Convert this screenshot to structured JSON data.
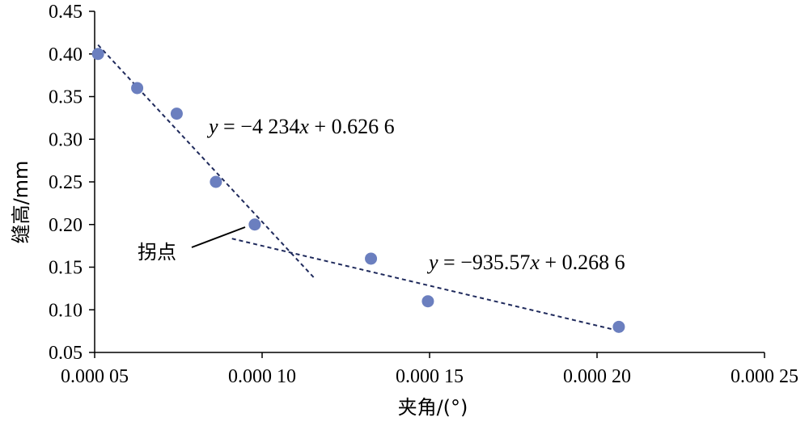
{
  "chart_data": {
    "type": "scatter",
    "xlabel": "夹角/(°)",
    "ylabel": "缝高/mm",
    "xlim": [
      5e-05,
      0.00025
    ],
    "ylim": [
      0.05,
      0.45
    ],
    "x_ticks": [
      5e-05,
      0.0001,
      0.00015,
      0.0002,
      0.00025
    ],
    "x_tick_labels": [
      "0.000 05",
      "0.000 10",
      "0.000 15",
      "0.000 20",
      "0.000 25"
    ],
    "y_ticks": [
      0.05,
      0.1,
      0.15,
      0.2,
      0.25,
      0.3,
      0.35,
      0.4,
      0.45
    ],
    "y_tick_labels": [
      "0.05",
      "0.10",
      "0.15",
      "0.20",
      "0.25",
      "0.30",
      "0.35",
      "0.40",
      "0.45"
    ],
    "grid": false,
    "points": {
      "x": [
        5.1e-05,
        6.27e-05,
        7.45e-05,
        8.62e-05,
        9.78e-05,
        0.0001325,
        0.0001495,
        0.0002065
      ],
      "y": [
        0.4,
        0.36,
        0.33,
        0.25,
        0.2,
        0.16,
        0.11,
        0.08
      ],
      "color": "#6b7fbf"
    },
    "trendlines": [
      {
        "slope": -4234,
        "intercept": 0.6266,
        "x_range": [
          5.1e-05,
          0.000116
        ],
        "equation_parts": {
          "y": "y",
          "rest": " = −4 234",
          "x": "x",
          "tail": " + 0.626 6"
        }
      },
      {
        "slope": -935.57,
        "intercept": 0.2686,
        "x_range": [
          9.1e-05,
          0.0002065
        ],
        "equation_parts": {
          "y": "y",
          "rest": " = −935.57",
          "x": "x",
          "tail": " + 0.268 6"
        }
      }
    ],
    "annotation": {
      "text": "拐点"
    },
    "line_color": "#1f2a5c"
  }
}
